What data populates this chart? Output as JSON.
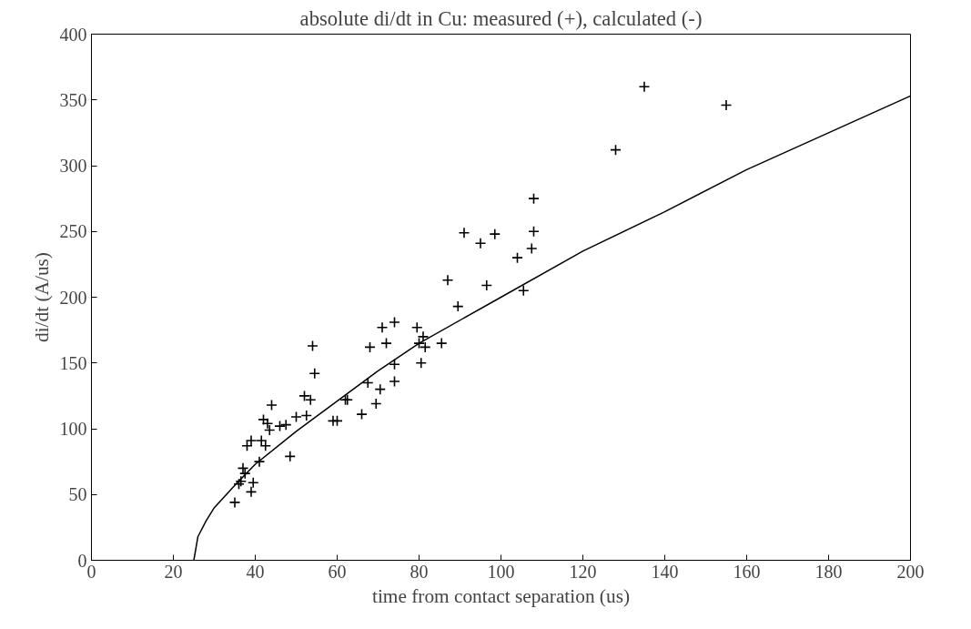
{
  "chart_data": {
    "type": "scatter",
    "title": "absolute di/dt in Cu: measured (+), calculated (-)",
    "xlabel": "time from contact separation (us)",
    "ylabel": "di/dt (A/us)",
    "xlim": [
      0,
      200
    ],
    "ylim": [
      0,
      400
    ],
    "xticks": [
      0,
      20,
      40,
      60,
      80,
      100,
      120,
      140,
      160,
      180,
      200
    ],
    "yticks": [
      0,
      50,
      100,
      150,
      200,
      250,
      300,
      350,
      400
    ],
    "grid": false,
    "series": [
      {
        "marker": "cross",
        "color": "#000000",
        "x": [
          35,
          36,
          36.5,
          37,
          37.5,
          38,
          39,
          39,
          39.5,
          41,
          41.5,
          42,
          42.5,
          43,
          43.5,
          44,
          46,
          47.5,
          48.5,
          50,
          52,
          52.5,
          53.5,
          54,
          54.5,
          59,
          60,
          62,
          62.5,
          66,
          67.5,
          68,
          69.5,
          70.5,
          71,
          72,
          74,
          74,
          74,
          79.5,
          80,
          80.5,
          81,
          81.5,
          85.5,
          87,
          89.5,
          91,
          95,
          96.5,
          98.5,
          104,
          105.5,
          107.5,
          108,
          108,
          128,
          135,
          155
        ],
        "values": [
          44,
          58,
          60,
          70,
          66,
          87,
          91,
          52,
          59,
          75,
          91,
          107,
          87,
          104,
          99,
          118,
          102,
          103,
          79,
          109,
          125,
          110,
          122,
          163,
          142,
          106,
          106,
          122,
          122,
          111,
          135,
          162,
          119,
          130,
          177,
          165,
          136,
          149,
          181,
          177,
          165,
          150,
          170,
          162,
          165,
          213,
          193,
          249,
          241,
          209,
          248,
          230,
          205,
          237,
          250,
          275,
          312,
          360,
          346
        ]
      },
      {
        "type": "line",
        "line_style": "solid",
        "color": "#000000",
        "x": [
          25,
          26,
          28,
          30,
          35,
          40,
          50,
          60,
          70,
          80,
          100,
          120,
          140,
          160,
          180,
          200
        ],
        "values": [
          0,
          18,
          30,
          40,
          57,
          73,
          98,
          121,
          144,
          165,
          200,
          235,
          265,
          297,
          325,
          353
        ]
      }
    ]
  }
}
